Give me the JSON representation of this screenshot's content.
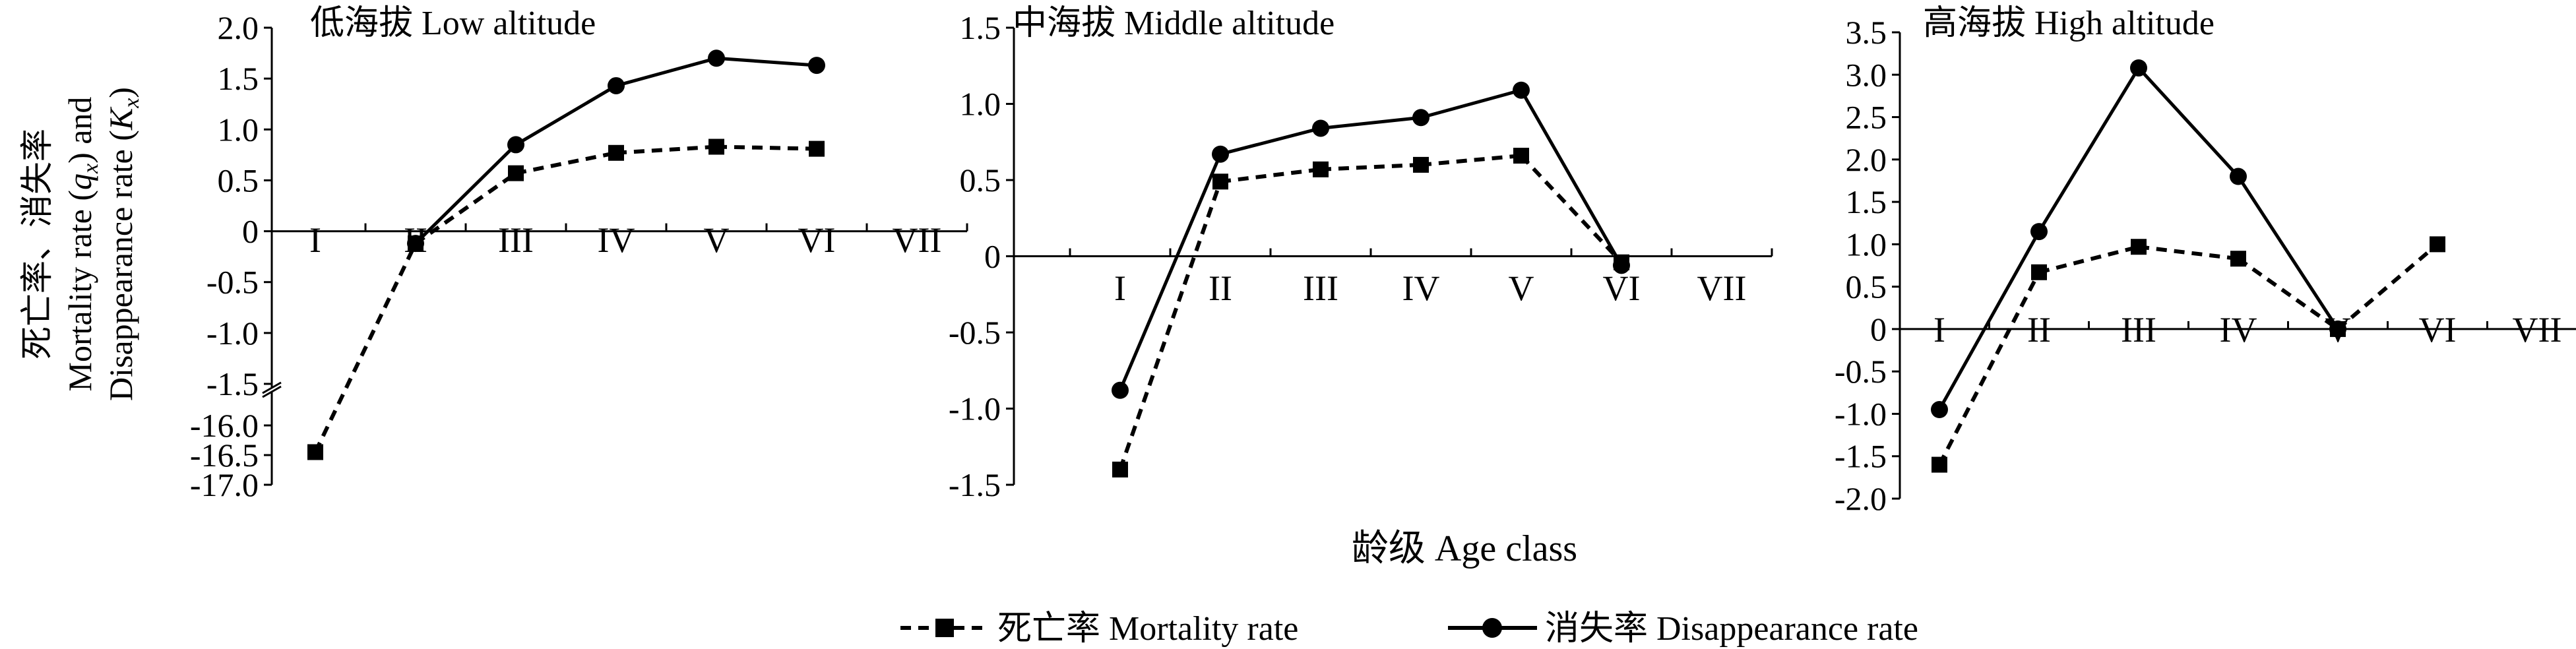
{
  "figure": {
    "ylabel_line1": "死亡率、消失率",
    "ylabel_line2_prefix": "Mortality rate (",
    "ylabel_line2_var": "q",
    "ylabel_line2_sub": "x",
    "ylabel_line2_suffix": ") and",
    "ylabel_line3_prefix": "Disappearance rate (",
    "ylabel_line3_var": "K",
    "ylabel_line3_sub": "x",
    "ylabel_line3_suffix": ")",
    "xlabel": "龄级 Age class",
    "legend": {
      "mortality": "死亡率 Mortality rate",
      "disappearance": "消失率 Disappearance rate"
    }
  },
  "chart_data": [
    {
      "type": "line",
      "title": "低海拔 Low altitude",
      "categories": [
        "I",
        "II",
        "III",
        "IV",
        "V",
        "VI",
        "VII"
      ],
      "axis_break": true,
      "upper_ylim": [
        -1.5,
        2.0
      ],
      "upper_yticks": [
        "2.0",
        "1.5",
        "1.0",
        "0.5",
        "0",
        "-0.5",
        "-1.0",
        "-1.5"
      ],
      "lower_ylim": [
        -17.0,
        -15.5
      ],
      "lower_yticks": [
        "-16.0",
        "-16.5",
        "-17.0"
      ],
      "series": [
        {
          "name": "死亡率 Mortality rate",
          "style": "dashed-square",
          "values": [
            -16.45,
            -0.12,
            0.57,
            0.77,
            0.83,
            0.81,
            null
          ]
        },
        {
          "name": "消失率 Disappearance rate",
          "style": "solid-circle",
          "values": [
            null,
            -0.12,
            0.85,
            1.43,
            1.7,
            1.63,
            null
          ]
        }
      ]
    },
    {
      "type": "line",
      "title": "中海拔 Middle altitude",
      "categories": [
        "I",
        "II",
        "III",
        "IV",
        "V",
        "VI",
        "VII"
      ],
      "ylim": [
        -1.5,
        1.5
      ],
      "yticks": [
        "1.5",
        "1.0",
        "0.5",
        "0",
        "-0.5",
        "-1.0",
        "-1.5"
      ],
      "series": [
        {
          "name": "死亡率 Mortality rate",
          "style": "dashed-square",
          "values": [
            -1.4,
            0.49,
            0.57,
            0.6,
            0.66,
            -0.04,
            null
          ]
        },
        {
          "name": "消失率 Disappearance rate",
          "style": "solid-circle",
          "values": [
            -0.88,
            0.67,
            0.84,
            0.91,
            1.09,
            -0.06,
            null
          ]
        }
      ]
    },
    {
      "type": "line",
      "title": "高海拔 High altitude",
      "categories": [
        "I",
        "II",
        "III",
        "IV",
        "V",
        "VI",
        "VII"
      ],
      "ylim": [
        -2.0,
        3.5
      ],
      "yticks": [
        "3.5",
        "3.0",
        "2.5",
        "2.0",
        "1.5",
        "1.0",
        "0.5",
        "0",
        "-0.5",
        "-1.0",
        "-1.5",
        "-2.0"
      ],
      "series": [
        {
          "name": "死亡率 Mortality rate",
          "style": "dashed-square",
          "values": [
            -1.6,
            0.67,
            0.97,
            0.83,
            0.0,
            1.0,
            null
          ]
        },
        {
          "name": "消失率 Disappearance rate",
          "style": "solid-circle",
          "values": [
            -0.95,
            1.15,
            3.08,
            1.8,
            0.0,
            null,
            null
          ]
        }
      ]
    }
  ]
}
